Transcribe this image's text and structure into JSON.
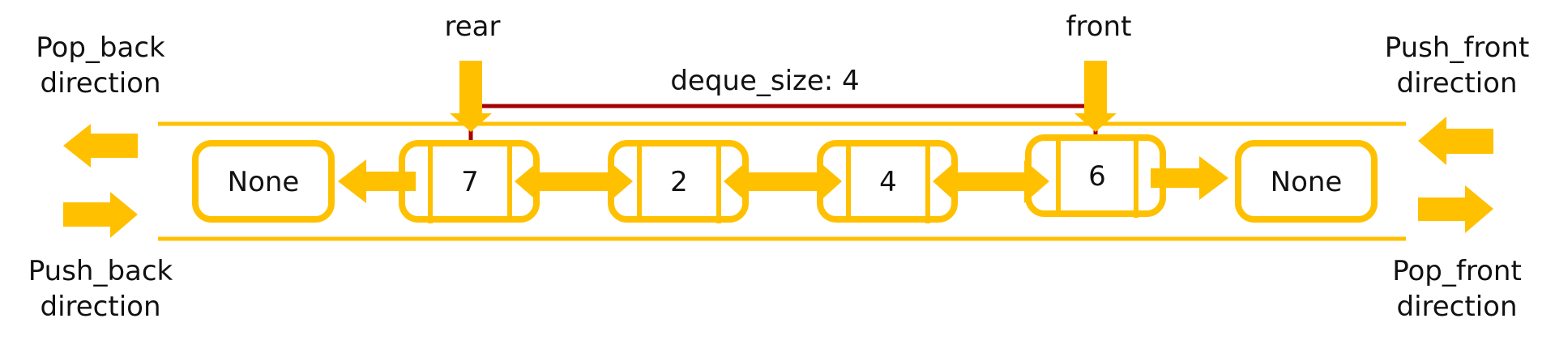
{
  "labels": {
    "rear": "rear",
    "front": "front",
    "deque_size": "deque_size: 4",
    "pop_back_1": "Pop_back",
    "pop_back_2": "direction",
    "push_back_1": "Push_back",
    "push_back_2": "direction",
    "push_front_1": "Push_front",
    "push_front_2": "direction",
    "pop_front_1": "Pop_front",
    "pop_front_2": "direction"
  },
  "nodes": {
    "left_none": "None",
    "n1": "7",
    "n2": "2",
    "n3": "4",
    "n4": "6",
    "right_none": "None"
  },
  "colors": {
    "accent": "#FFC000",
    "size_line": "#A60000",
    "text": "#111111"
  }
}
